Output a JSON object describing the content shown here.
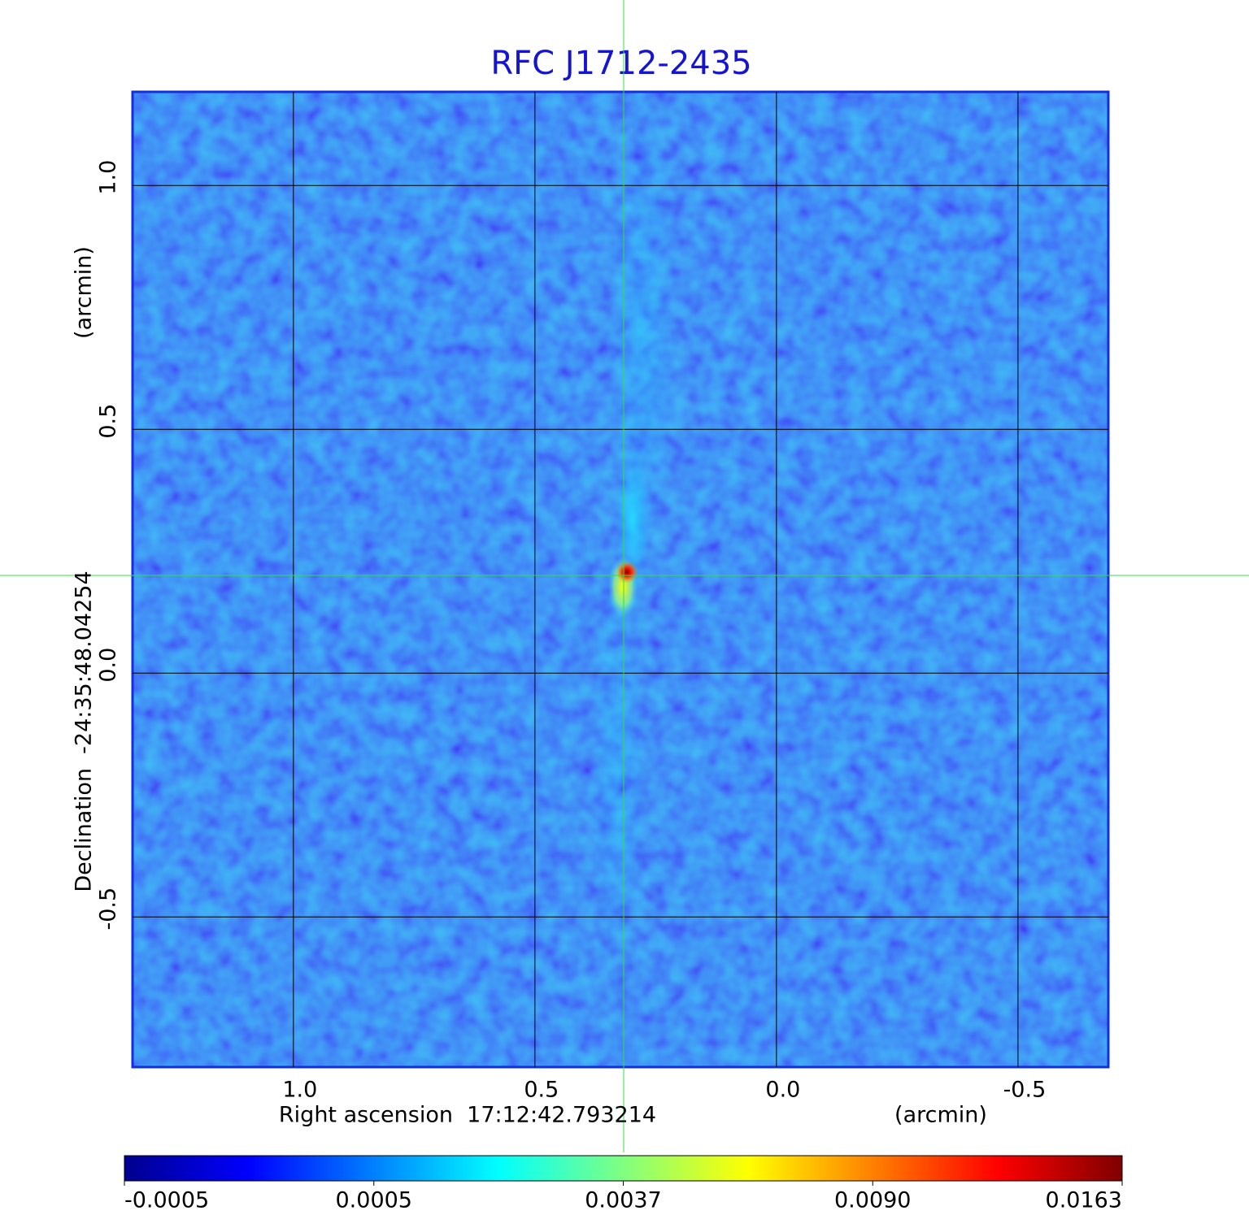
{
  "chart_data": {
    "type": "image",
    "title": "RFC J1712-2435",
    "x_label": "Right ascension  17:12:42.793214",
    "x_unit": "(arcmin)",
    "y_label": "Declination  -24:35:48.04254",
    "y_unit": "(arcmin)",
    "xlim": [
      1.333,
      -0.687
    ],
    "ylim": [
      -0.808,
      1.192
    ],
    "xticks": [
      {
        "value": 1,
        "label": "1.0"
      },
      {
        "value": 0.5,
        "label": "0.5"
      },
      {
        "value": 0,
        "label": "0.0"
      },
      {
        "value": -0.5,
        "label": "-0.5"
      }
    ],
    "yticks": [
      {
        "value": 1,
        "label": "1.0"
      },
      {
        "value": 0.5,
        "label": "0.5"
      },
      {
        "value": 0,
        "label": "0.0"
      },
      {
        "value": -0.5,
        "label": "-0.5"
      }
    ],
    "grid": true,
    "colorbar": {
      "ticks": [
        -0.0005,
        0.0005,
        0.0037,
        {
          "value": 0.009,
          "label": "0.0090"
        },
        0.0163
      ],
      "colors": [
        "#00008f",
        "#0000ff",
        "#0080ff",
        "#00ffff",
        "#80ff80",
        "#ffff00",
        "#ff8000",
        "#ff0000",
        "#800000"
      ]
    }
  }
}
